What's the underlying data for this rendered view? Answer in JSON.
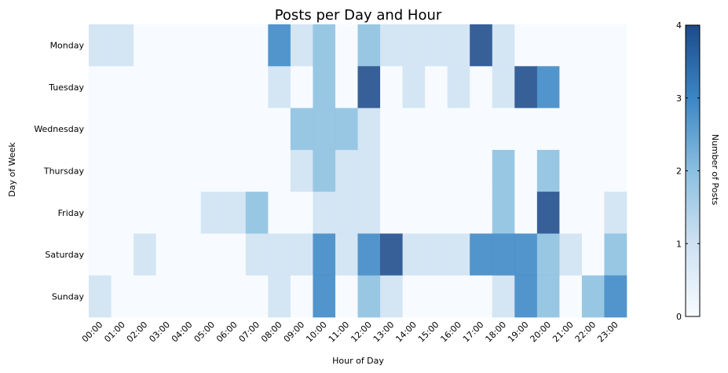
{
  "chart_data": {
    "type": "heatmap",
    "title": "Posts per Day and Hour",
    "xlabel": "Hour of Day",
    "ylabel": "Day of Week",
    "x_categories": [
      "00:00",
      "01:00",
      "02:00",
      "03:00",
      "04:00",
      "05:00",
      "06:00",
      "07:00",
      "08:00",
      "09:00",
      "10:00",
      "11:00",
      "12:00",
      "13:00",
      "14:00",
      "15:00",
      "16:00",
      "17:00",
      "18:00",
      "19:00",
      "20:00",
      "21:00",
      "22:00",
      "23:00"
    ],
    "y_categories": [
      "Monday",
      "Tuesday",
      "Wednesday",
      "Thursday",
      "Friday",
      "Saturday",
      "Sunday"
    ],
    "values": [
      [
        1,
        1,
        0,
        0,
        0,
        0,
        0,
        0,
        3,
        1,
        2,
        0,
        2,
        1,
        1,
        1,
        1,
        4,
        1,
        0,
        0,
        0,
        0,
        0
      ],
      [
        0,
        0,
        0,
        0,
        0,
        0,
        0,
        0,
        1,
        0,
        2,
        0,
        4,
        0,
        1,
        0,
        1,
        0,
        1,
        4,
        3,
        0,
        0,
        0
      ],
      [
        0,
        0,
        0,
        0,
        0,
        0,
        0,
        0,
        0,
        2,
        2,
        2,
        1,
        0,
        0,
        0,
        0,
        0,
        0,
        0,
        0,
        0,
        0,
        0
      ],
      [
        0,
        0,
        0,
        0,
        0,
        0,
        0,
        0,
        0,
        1,
        2,
        1,
        1,
        0,
        0,
        0,
        0,
        0,
        2,
        0,
        2,
        0,
        0,
        0
      ],
      [
        0,
        0,
        0,
        0,
        0,
        1,
        1,
        2,
        0,
        0,
        1,
        1,
        1,
        0,
        0,
        0,
        0,
        0,
        2,
        0,
        4,
        0,
        0,
        1
      ],
      [
        0,
        0,
        1,
        0,
        0,
        0,
        0,
        1,
        1,
        1,
        3,
        1,
        3,
        4,
        1,
        1,
        1,
        3,
        3,
        3,
        2,
        1,
        0,
        2
      ],
      [
        1,
        0,
        0,
        0,
        0,
        0,
        0,
        0,
        1,
        0,
        3,
        0,
        2,
        1,
        0,
        0,
        0,
        0,
        1,
        3,
        2,
        0,
        2,
        3
      ]
    ],
    "colorbar": {
      "label": "Number of Posts",
      "min": 0,
      "max": 4,
      "ticks": [
        "0",
        "1",
        "2",
        "3",
        "4"
      ],
      "colors": [
        "#f7fbff",
        "#cfe1f2",
        "#8bbfe0",
        "#3a86c5",
        "#1c4a8b"
      ]
    }
  }
}
